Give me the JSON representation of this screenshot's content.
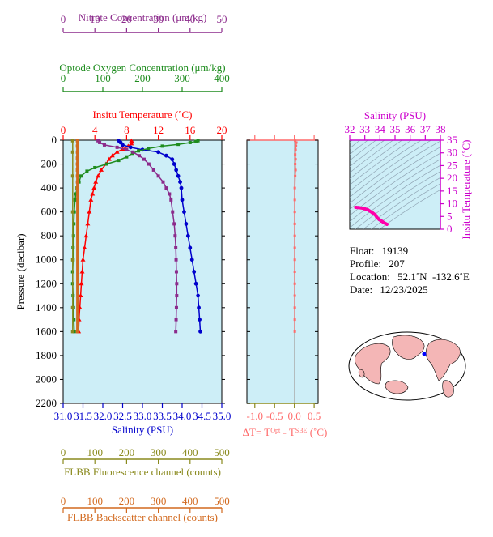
{
  "chart_data": [
    {
      "type": "line",
      "title": "",
      "ylabel": "Pressure (decibar)",
      "y_ticks": [
        0,
        200,
        400,
        600,
        800,
        1000,
        1200,
        1400,
        1600,
        1800,
        2000,
        2200
      ],
      "ylim": [
        0,
        2200
      ],
      "y_inverted": true,
      "axes": [
        {
          "key": "nitrate",
          "label": "Nitrate Concentration (μm/kg)",
          "ticks": [
            "0",
            "10",
            "20",
            "30",
            "40",
            "50"
          ],
          "range": [
            0,
            50
          ],
          "color": "#8b2a8b"
        },
        {
          "key": "oxygen",
          "label": "Optode Oxygen Concentration (μm/kg)",
          "ticks": [
            "0",
            "100",
            "200",
            "300",
            "400"
          ],
          "range": [
            0,
            400
          ],
          "color": "#1e8c1e"
        },
        {
          "key": "temp",
          "label": "Insitu Temperature (˚C)",
          "ticks": [
            "0",
            "4",
            "8",
            "12",
            "16",
            "20"
          ],
          "range": [
            0,
            20
          ],
          "color": "#ff0000"
        },
        {
          "key": "salinity",
          "label": "Salinity (PSU)",
          "ticks": [
            "31.0",
            "31.5",
            "32.0",
            "32.5",
            "33.0",
            "33.5",
            "34.0",
            "34.5",
            "35.0"
          ],
          "range": [
            31,
            35
          ],
          "color": "#0000cc"
        },
        {
          "key": "fluor",
          "label": "FLBB Fluorescence channel (counts)",
          "ticks": [
            "0",
            "100",
            "200",
            "300",
            "400",
            "500"
          ],
          "range": [
            0,
            500
          ],
          "color": "#8a8a1e"
        },
        {
          "key": "backscatter",
          "label": "FLBB Backscatter channel (counts)",
          "ticks": [
            "0",
            "100",
            "200",
            "300",
            "400",
            "500"
          ],
          "range": [
            0,
            500
          ],
          "color": "#d2691e"
        }
      ],
      "series": [
        {
          "key": "temp",
          "color": "#ff0000",
          "marker": "triangle",
          "points": [
            [
              8.6,
              5
            ],
            [
              8.7,
              15
            ],
            [
              8.6,
              30
            ],
            [
              8.2,
              50
            ],
            [
              7.5,
              75
            ],
            [
              6.8,
              100
            ],
            [
              6.2,
              130
            ],
            [
              5.8,
              160
            ],
            [
              5.4,
              200
            ],
            [
              4.8,
              250
            ],
            [
              4.4,
              300
            ],
            [
              4.1,
              350
            ],
            [
              3.9,
              400
            ],
            [
              3.7,
              450
            ],
            [
              3.5,
              500
            ],
            [
              3.3,
              600
            ],
            [
              3.1,
              700
            ],
            [
              2.9,
              800
            ],
            [
              2.7,
              900
            ],
            [
              2.5,
              1000
            ],
            [
              2.4,
              1100
            ],
            [
              2.3,
              1200
            ],
            [
              2.2,
              1300
            ],
            [
              2.1,
              1400
            ],
            [
              2.0,
              1500
            ],
            [
              1.95,
              1600
            ]
          ]
        },
        {
          "key": "salinity",
          "color": "#0000cc",
          "marker": "circle",
          "points": [
            [
              32.4,
              5
            ],
            [
              32.45,
              20
            ],
            [
              32.5,
              40
            ],
            [
              32.7,
              60
            ],
            [
              33.0,
              80
            ],
            [
              33.4,
              100
            ],
            [
              33.6,
              130
            ],
            [
              33.75,
              160
            ],
            [
              33.8,
              200
            ],
            [
              33.85,
              250
            ],
            [
              33.9,
              300
            ],
            [
              33.95,
              350
            ],
            [
              33.98,
              400
            ],
            [
              34.0,
              500
            ],
            [
              34.05,
              600
            ],
            [
              34.1,
              700
            ],
            [
              34.15,
              800
            ],
            [
              34.2,
              900
            ],
            [
              34.25,
              1000
            ],
            [
              34.3,
              1100
            ],
            [
              34.35,
              1200
            ],
            [
              34.4,
              1300
            ],
            [
              34.42,
              1400
            ],
            [
              34.44,
              1500
            ],
            [
              34.46,
              1600
            ]
          ]
        },
        {
          "key": "oxygen",
          "color": "#1e8c1e",
          "marker": "square",
          "points": [
            [
              340,
              5
            ],
            [
              335,
              10
            ],
            [
              320,
              20
            ],
            [
              290,
              35
            ],
            [
              250,
              50
            ],
            [
              215,
              70
            ],
            [
              190,
              90
            ],
            [
              175,
              110
            ],
            [
              160,
              140
            ],
            [
              140,
              170
            ],
            [
              110,
              200
            ],
            [
              80,
              230
            ],
            [
              60,
              260
            ],
            [
              45,
              300
            ],
            [
              40,
              350
            ],
            [
              35,
              400
            ],
            [
              32,
              450
            ],
            [
              30,
              500
            ],
            [
              28,
              600
            ],
            [
              27,
              700
            ],
            [
              26,
              800
            ],
            [
              25,
              900
            ],
            [
              25,
              1000
            ],
            [
              24,
              1100
            ],
            [
              24,
              1200
            ],
            [
              25,
              1300
            ],
            [
              26,
              1400
            ],
            [
              27,
              1500
            ],
            [
              28,
              1600
            ]
          ]
        },
        {
          "key": "nitrate",
          "color": "#8b2a8b",
          "marker": "square",
          "points": [
            [
              11,
              5
            ],
            [
              11.5,
              20
            ],
            [
              13,
              40
            ],
            [
              17,
              60
            ],
            [
              20,
              80
            ],
            [
              22,
              100
            ],
            [
              24,
              130
            ],
            [
              25.5,
              160
            ],
            [
              27,
              200
            ],
            [
              28.5,
              250
            ],
            [
              30,
              300
            ],
            [
              31.5,
              350
            ],
            [
              32.5,
              400
            ],
            [
              33.5,
              450
            ],
            [
              34,
              500
            ],
            [
              34.5,
              600
            ],
            [
              35,
              700
            ],
            [
              35.3,
              800
            ],
            [
              35.5,
              900
            ],
            [
              35.6,
              1000
            ],
            [
              35.7,
              1100
            ],
            [
              35.8,
              1200
            ],
            [
              35.8,
              1300
            ],
            [
              35.7,
              1400
            ],
            [
              35.6,
              1500
            ],
            [
              35.5,
              1600
            ]
          ]
        },
        {
          "key": "fluor",
          "color": "#8a8a1e",
          "marker": "square",
          "points": [
            [
              30,
              5
            ],
            [
              30,
              100
            ],
            [
              30,
              300
            ],
            [
              30,
              600
            ],
            [
              30,
              1000
            ],
            [
              30,
              1400
            ],
            [
              30,
              1600
            ]
          ]
        },
        {
          "key": "backscatter",
          "color": "#d2691e",
          "marker": "square",
          "points": [
            [
              45,
              5
            ],
            [
              45,
              50
            ],
            [
              45,
              100
            ],
            [
              45,
              150
            ],
            [
              45,
              200
            ],
            [
              45,
              250
            ],
            [
              45,
              300
            ],
            [
              45,
              350
            ],
            [
              45,
              400
            ],
            [
              45,
              1600
            ]
          ]
        }
      ]
    },
    {
      "type": "line",
      "xlabel_prefix": "ΔT= T",
      "xlabel_sup1": "Opt",
      "xlabel_mid": " - T",
      "xlabel_sup2": "SBE",
      "xlabel_suffix": " (˚C)",
      "x_ticks": [
        "-1.0",
        "-0.5",
        "0.0",
        "0.5"
      ],
      "xlim": [
        -1.2,
        0.6
      ],
      "ylim": [
        0,
        2200
      ],
      "series": [
        {
          "name": "",
          "color": "#ff6a6a",
          "points": [
            [
              0.02,
              5
            ],
            [
              0.05,
              20
            ],
            [
              0.04,
              50
            ],
            [
              0.03,
              80
            ],
            [
              0.02,
              120
            ],
            [
              0.03,
              160
            ],
            [
              0.02,
              200
            ],
            [
              0.03,
              250
            ],
            [
              0.02,
              300
            ],
            [
              0.01,
              400
            ],
            [
              0.01,
              500
            ],
            [
              0.01,
              600
            ],
            [
              0.01,
              700
            ],
            [
              0.01,
              800
            ],
            [
              0.01,
              900
            ],
            [
              0.01,
              1000
            ],
            [
              0.01,
              1100
            ],
            [
              0.01,
              1200
            ],
            [
              0.01,
              1300
            ],
            [
              0.01,
              1400
            ],
            [
              0.01,
              1500
            ],
            [
              0.01,
              1600
            ]
          ]
        }
      ]
    },
    {
      "type": "scatter",
      "xlabel": "Salinity (PSU)",
      "ylabel": "Insitu Temperature (˚C)",
      "x_ticks": [
        "32",
        "33",
        "34",
        "35",
        "36",
        "37",
        "38"
      ],
      "y_ticks": [
        "0",
        "5",
        "10",
        "15",
        "20",
        "25",
        "30",
        "35"
      ],
      "xlim": [
        32,
        38
      ],
      "ylim": [
        0,
        35
      ],
      "series": [
        {
          "name": "",
          "color": "#ff00aa",
          "points": [
            [
              32.4,
              8.6
            ],
            [
              32.6,
              8.5
            ],
            [
              32.9,
              8.2
            ],
            [
              33.2,
              7.6
            ],
            [
              33.5,
              6.5
            ],
            [
              33.7,
              5.6
            ],
            [
              33.8,
              4.6
            ],
            [
              33.95,
              3.8
            ],
            [
              34.1,
              3.2
            ],
            [
              34.25,
              2.6
            ],
            [
              34.4,
              2.1
            ],
            [
              34.46,
              1.95
            ]
          ]
        }
      ]
    }
  ],
  "info": {
    "float_label": "Float:",
    "float_value": "19139",
    "profile_label": "Profile:",
    "profile_value": "207",
    "location_label": "Location:",
    "location_value": "52.1˚N  -132.6˚E",
    "date_label": "Date:",
    "date_value": "12/23/2025"
  },
  "map": {
    "marker_color": "#0000ff",
    "land_color": "#f4b6b6",
    "ocean_color": "#ffffff"
  }
}
